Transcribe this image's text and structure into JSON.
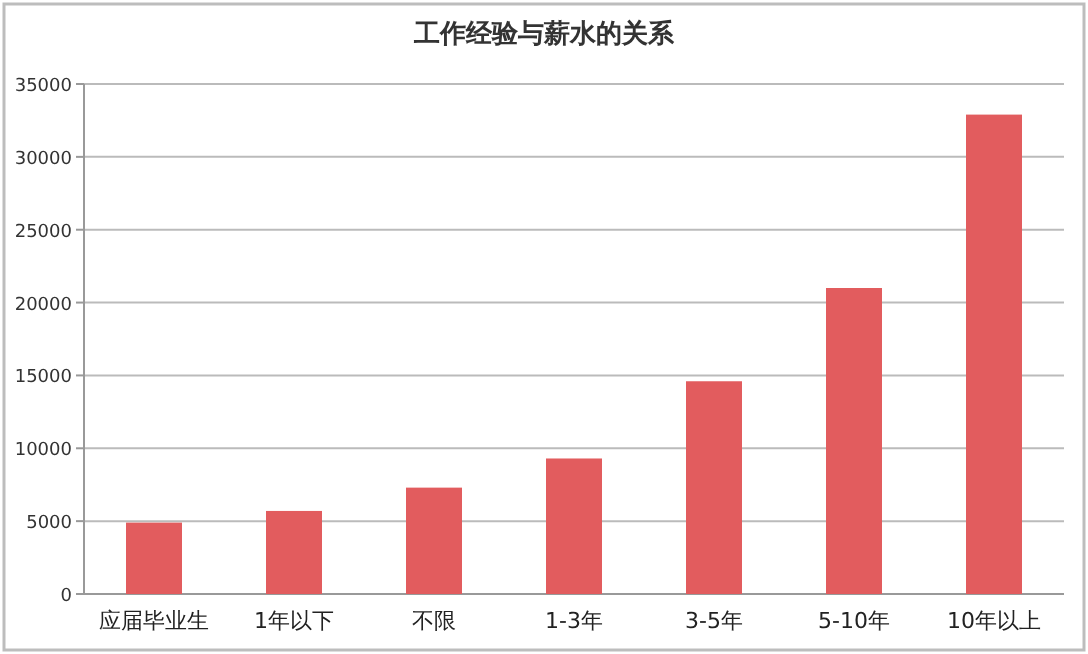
{
  "chart_data": {
    "type": "bar",
    "title": "工作经验与薪水的关系",
    "categories": [
      "应届毕业生",
      "1年以下",
      "不限",
      "1-3年",
      "3-5年",
      "5-10年",
      "10年以上"
    ],
    "values": [
      4900,
      5700,
      7300,
      9300,
      14600,
      21000,
      32900
    ],
    "color": "#e25c5e",
    "ylim": [
      0,
      35000
    ],
    "yticks": [
      0,
      5000,
      10000,
      15000,
      20000,
      25000,
      30000,
      35000
    ],
    "grid": "y"
  }
}
